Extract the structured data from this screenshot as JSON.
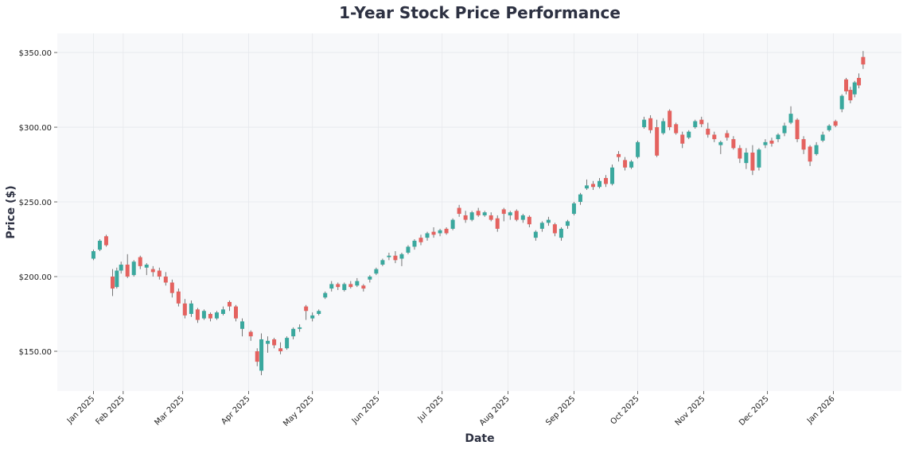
{
  "chart_data": {
    "type": "candlestick",
    "title": "1-Year Stock Price Performance",
    "xlabel": "Date",
    "ylabel": "Price ($)",
    "xlim": [
      "2025-01-01",
      "2026-02-02"
    ],
    "ylim": [
      123.4,
      362.8
    ],
    "grid": true,
    "colors": {
      "up": "#3aa89e",
      "down": "#e4625f",
      "plot_background": "#f7f8fa",
      "title": "#2d3142"
    },
    "yticks": [
      {
        "value": 150,
        "label": "$150.00"
      },
      {
        "value": 200,
        "label": "$200.00"
      },
      {
        "value": 250,
        "label": "$250.00"
      },
      {
        "value": 300,
        "label": "$300.00"
      },
      {
        "value": 350,
        "label": "$350.00"
      }
    ],
    "xticks": [
      {
        "date": "2025-01-18",
        "label": "Jan 2025"
      },
      {
        "date": "2025-02-01",
        "label": "Feb 2025"
      },
      {
        "date": "2025-03-01",
        "label": "Mar 2025"
      },
      {
        "date": "2025-04-01",
        "label": "Apr 2025"
      },
      {
        "date": "2025-05-01",
        "label": "May 2025"
      },
      {
        "date": "2025-06-01",
        "label": "Jun 2025"
      },
      {
        "date": "2025-07-01",
        "label": "Jul 2025"
      },
      {
        "date": "2025-08-01",
        "label": "Aug 2025"
      },
      {
        "date": "2025-09-01",
        "label": "Sep 2025"
      },
      {
        "date": "2025-10-01",
        "label": "Oct 2025"
      },
      {
        "date": "2025-11-01",
        "label": "Nov 2025"
      },
      {
        "date": "2025-12-01",
        "label": "Dec 2025"
      },
      {
        "date": "2026-01-01",
        "label": "Jan 2026"
      }
    ],
    "columns": [
      "date",
      "open",
      "high",
      "low",
      "close"
    ],
    "candles": [
      [
        "2025-01-18",
        212,
        218,
        211,
        217
      ],
      [
        "2025-01-21",
        218,
        225,
        217,
        224
      ],
      [
        "2025-01-24",
        227,
        228,
        220,
        221
      ],
      [
        "2025-01-27",
        200,
        205,
        187,
        192
      ],
      [
        "2025-01-29",
        193,
        206,
        192,
        204
      ],
      [
        "2025-01-31",
        204,
        210,
        202,
        208
      ],
      [
        "2025-02-03",
        208,
        215,
        199,
        200
      ],
      [
        "2025-02-06",
        201,
        211,
        200,
        210
      ],
      [
        "2025-02-09",
        213,
        214,
        205,
        207
      ],
      [
        "2025-02-12",
        206,
        209,
        201,
        208
      ],
      [
        "2025-02-15",
        205,
        207,
        200,
        203
      ],
      [
        "2025-02-18",
        204,
        206,
        198,
        200
      ],
      [
        "2025-02-21",
        200,
        203,
        194,
        196
      ],
      [
        "2025-02-24",
        196,
        198,
        186,
        189
      ],
      [
        "2025-02-27",
        190,
        192,
        180,
        182
      ],
      [
        "2025-03-02",
        182,
        185,
        172,
        174
      ],
      [
        "2025-03-05",
        175,
        184,
        173,
        182
      ],
      [
        "2025-03-08",
        178,
        179,
        169,
        171
      ],
      [
        "2025-03-11",
        172,
        178,
        171,
        177
      ],
      [
        "2025-03-14",
        175,
        176,
        170,
        172
      ],
      [
        "2025-03-17",
        172,
        177,
        171,
        176
      ],
      [
        "2025-03-20",
        175,
        180,
        174,
        178
      ],
      [
        "2025-03-23",
        183,
        184,
        177,
        180
      ],
      [
        "2025-03-26",
        180,
        181,
        170,
        172
      ],
      [
        "2025-03-29",
        165,
        172,
        160,
        170
      ],
      [
        "2025-04-02",
        163,
        164,
        157,
        160
      ],
      [
        "2025-04-05",
        150,
        152,
        140,
        143
      ],
      [
        "2025-04-07",
        137,
        162,
        134,
        158
      ],
      [
        "2025-04-10",
        155,
        160,
        149,
        157
      ],
      [
        "2025-04-13",
        158,
        159,
        152,
        154
      ],
      [
        "2025-04-16",
        152,
        156,
        148,
        150
      ],
      [
        "2025-04-19",
        152,
        160,
        151,
        159
      ],
      [
        "2025-04-22",
        160,
        166,
        158,
        165
      ],
      [
        "2025-04-25",
        165,
        168,
        163,
        166
      ],
      [
        "2025-04-28",
        180,
        181,
        171,
        177
      ],
      [
        "2025-05-01",
        172,
        176,
        170,
        174
      ],
      [
        "2025-05-04",
        175,
        178,
        174,
        177
      ],
      [
        "2025-05-07",
        186,
        190,
        185,
        189
      ],
      [
        "2025-05-10",
        192,
        197,
        190,
        195
      ],
      [
        "2025-05-13",
        195,
        196,
        191,
        193
      ],
      [
        "2025-05-16",
        191,
        196,
        190,
        195
      ],
      [
        "2025-05-19",
        195,
        197,
        192,
        193
      ],
      [
        "2025-05-22",
        194,
        199,
        193,
        197
      ],
      [
        "2025-05-25",
        194,
        195,
        190,
        192
      ],
      [
        "2025-05-28",
        198,
        201,
        196,
        200
      ],
      [
        "2025-05-31",
        202,
        206,
        201,
        205
      ],
      [
        "2025-06-03",
        208,
        212,
        207,
        211
      ],
      [
        "2025-06-06",
        213,
        216,
        211,
        214
      ],
      [
        "2025-06-09",
        214,
        217,
        209,
        211
      ],
      [
        "2025-06-12",
        212,
        216,
        207,
        215
      ],
      [
        "2025-06-15",
        216,
        221,
        215,
        220
      ],
      [
        "2025-06-18",
        220,
        225,
        218,
        224
      ],
      [
        "2025-06-21",
        226,
        228,
        221,
        223
      ],
      [
        "2025-06-24",
        226,
        230,
        224,
        229
      ],
      [
        "2025-06-27",
        230,
        233,
        226,
        228
      ],
      [
        "2025-06-30",
        229,
        232,
        227,
        231
      ],
      [
        "2025-07-03",
        232,
        233,
        228,
        229
      ],
      [
        "2025-07-06",
        232,
        239,
        231,
        238
      ],
      [
        "2025-07-09",
        246,
        248,
        240,
        242
      ],
      [
        "2025-07-12",
        241,
        244,
        236,
        238
      ],
      [
        "2025-07-15",
        238,
        244,
        237,
        243
      ],
      [
        "2025-07-18",
        244,
        246,
        240,
        241
      ],
      [
        "2025-07-21",
        241,
        244,
        240,
        243
      ],
      [
        "2025-07-24",
        241,
        243,
        237,
        238
      ],
      [
        "2025-07-27",
        239,
        241,
        230,
        232
      ],
      [
        "2025-07-30",
        245,
        246,
        237,
        242
      ],
      [
        "2025-08-02",
        241,
        244,
        238,
        243
      ],
      [
        "2025-08-05",
        244,
        245,
        237,
        238
      ],
      [
        "2025-08-08",
        238,
        242,
        236,
        241
      ],
      [
        "2025-08-11",
        240,
        241,
        233,
        235
      ],
      [
        "2025-08-14",
        226,
        231,
        224,
        230
      ],
      [
        "2025-08-17",
        232,
        237,
        230,
        236
      ],
      [
        "2025-08-20",
        236,
        240,
        234,
        238
      ],
      [
        "2025-08-23",
        235,
        236,
        227,
        229
      ],
      [
        "2025-08-26",
        226,
        233,
        224,
        232
      ],
      [
        "2025-08-29",
        234,
        238,
        232,
        237
      ],
      [
        "2025-09-01",
        242,
        250,
        241,
        249
      ],
      [
        "2025-09-04",
        250,
        256,
        248,
        255
      ],
      [
        "2025-09-07",
        259,
        265,
        258,
        261
      ],
      [
        "2025-09-10",
        262,
        264,
        258,
        260
      ],
      [
        "2025-09-13",
        260,
        266,
        259,
        264
      ],
      [
        "2025-09-16",
        266,
        268,
        260,
        262
      ],
      [
        "2025-09-19",
        262,
        275,
        261,
        273
      ],
      [
        "2025-09-22",
        282,
        284,
        277,
        280
      ],
      [
        "2025-09-25",
        278,
        280,
        271,
        273
      ],
      [
        "2025-09-28",
        273,
        278,
        272,
        277
      ],
      [
        "2025-10-01",
        280,
        291,
        279,
        290
      ],
      [
        "2025-10-04",
        300,
        307,
        299,
        305
      ],
      [
        "2025-10-07",
        306,
        308,
        296,
        298
      ],
      [
        "2025-10-10",
        300,
        305,
        280,
        281
      ],
      [
        "2025-10-13",
        296,
        306,
        295,
        304
      ],
      [
        "2025-10-16",
        311,
        312,
        298,
        300
      ],
      [
        "2025-10-19",
        302,
        303,
        295,
        296
      ],
      [
        "2025-10-22",
        295,
        297,
        286,
        289
      ],
      [
        "2025-10-25",
        293,
        298,
        292,
        297
      ],
      [
        "2025-10-28",
        300,
        305,
        299,
        304
      ],
      [
        "2025-10-31",
        305,
        307,
        300,
        302
      ],
      [
        "2025-11-03",
        299,
        303,
        293,
        295
      ],
      [
        "2025-11-06",
        295,
        297,
        290,
        292
      ],
      [
        "2025-11-09",
        288,
        291,
        282,
        290
      ],
      [
        "2025-11-12",
        296,
        298,
        291,
        293
      ],
      [
        "2025-11-15",
        292,
        294,
        285,
        286
      ],
      [
        "2025-11-18",
        286,
        288,
        276,
        279
      ],
      [
        "2025-11-21",
        276,
        286,
        272,
        283
      ],
      [
        "2025-11-24",
        283,
        288,
        268,
        271
      ],
      [
        "2025-11-27",
        273,
        286,
        271,
        285
      ],
      [
        "2025-11-30",
        288,
        292,
        286,
        290
      ],
      [
        "2025-12-03",
        291,
        293,
        287,
        289
      ],
      [
        "2025-12-06",
        292,
        296,
        290,
        295
      ],
      [
        "2025-12-09",
        296,
        303,
        294,
        301
      ],
      [
        "2025-12-12",
        303,
        314,
        302,
        309
      ],
      [
        "2025-12-15",
        305,
        306,
        290,
        292
      ],
      [
        "2025-12-18",
        292,
        294,
        282,
        285
      ],
      [
        "2025-12-21",
        287,
        288,
        274,
        277
      ],
      [
        "2025-12-24",
        282,
        290,
        281,
        288
      ],
      [
        "2025-12-27",
        291,
        297,
        290,
        295
      ],
      [
        "2025-12-30",
        298,
        302,
        297,
        301
      ],
      [
        "2026-01-02",
        304,
        305,
        300,
        301
      ],
      [
        "2026-01-05",
        312,
        322,
        310,
        321
      ],
      [
        "2026-01-07",
        332,
        333,
        322,
        324
      ],
      [
        "2026-01-09",
        325,
        327,
        316,
        318
      ],
      [
        "2026-01-11",
        322,
        331,
        320,
        330
      ],
      [
        "2026-01-13",
        333,
        336,
        326,
        328
      ],
      [
        "2026-01-15",
        347,
        351,
        339,
        342
      ]
    ]
  }
}
